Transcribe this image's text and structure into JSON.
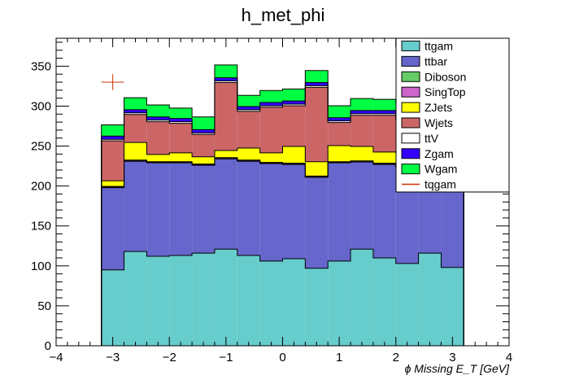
{
  "chart_data": {
    "type": "stacked-histogram",
    "title": "h_met_phi",
    "xlabel": "ϕ Missing E_T [GeV]",
    "ylabel": "",
    "xlim": [
      -4,
      4
    ],
    "ylim": [
      0,
      385
    ],
    "x_ticks": [
      -4,
      -3,
      -2,
      -1,
      0,
      1,
      2,
      3,
      4
    ],
    "x_tick_labels": [
      "−4",
      "−3",
      "−2",
      "−1",
      "0",
      "1",
      "2",
      "3",
      "4"
    ],
    "y_ticks": [
      0,
      50,
      100,
      150,
      200,
      250,
      300,
      350
    ],
    "y_tick_labels": [
      "0",
      "50",
      "100",
      "150",
      "200",
      "250",
      "300",
      "350"
    ],
    "bin_edges": [
      -3.2,
      -2.8,
      -2.4,
      -2.0,
      -1.6,
      -1.2,
      -0.8,
      -0.4,
      0.0,
      0.4,
      0.8,
      1.2,
      1.6,
      2.0,
      2.4,
      2.8,
      3.2
    ],
    "series": [
      {
        "name": "ttgam",
        "color": "#66cccc",
        "values": [
          95,
          118,
          112,
          113,
          116,
          121,
          113,
          106,
          109,
          97,
          106,
          121,
          110,
          103,
          116,
          98
        ]
      },
      {
        "name": "ttbar",
        "color": "#6666cc",
        "values": [
          103,
          113,
          117,
          116,
          110,
          113,
          118,
          122,
          118,
          114,
          123,
          109,
          117,
          121,
          110,
          102
        ]
      },
      {
        "name": "Diboson",
        "color": "#66cc66",
        "values": [
          0.5,
          0.5,
          0.5,
          0.5,
          0.5,
          0.5,
          0.5,
          0.5,
          0.5,
          0.5,
          0.5,
          0.5,
          0.5,
          0.5,
          0.5,
          0.5
        ]
      },
      {
        "name": "SingTop",
        "color": "#cc66cc",
        "values": [
          1,
          1,
          1,
          1,
          1,
          1,
          1,
          1,
          1,
          1,
          1,
          1,
          1,
          1,
          1,
          1
        ]
      },
      {
        "name": "ZJets",
        "color": "#ffff00",
        "values": [
          7,
          22,
          9,
          11,
          9,
          9,
          15,
          12,
          21,
          18,
          20,
          18,
          14,
          16,
          15,
          12
        ]
      },
      {
        "name": "Wjets",
        "color": "#cc6666",
        "values": [
          50,
          35,
          41,
          37,
          28,
          85,
          46,
          57,
          51,
          93,
          29,
          39,
          46,
          42,
          36,
          33
        ]
      },
      {
        "name": "ttV",
        "color": "#ffffff",
        "values": [
          2,
          2,
          2,
          2,
          2,
          2,
          2,
          2,
          2,
          2,
          2,
          2,
          2,
          2,
          2,
          2
        ]
      },
      {
        "name": "Zgam",
        "color": "#3300ff",
        "values": [
          4,
          4,
          4,
          4,
          4,
          4,
          4,
          4,
          4,
          4,
          4,
          4,
          4,
          4,
          4,
          4
        ]
      },
      {
        "name": "Wgam",
        "color": "#00ff44",
        "values": [
          14,
          15,
          15,
          13,
          16,
          16,
          14,
          15,
          15,
          15,
          15,
          15,
          14,
          14,
          13,
          14
        ]
      }
    ],
    "tqgam_marker": {
      "name": "tqgam",
      "color": "#cc3300",
      "x": -3.0,
      "y": 330,
      "xerr": 0.2,
      "yerr": 10
    },
    "legend": {
      "position": "top-right",
      "entries": [
        {
          "name": "ttgam",
          "color": "#66cccc",
          "style": "fill"
        },
        {
          "name": "ttbar",
          "color": "#6666cc",
          "style": "fill"
        },
        {
          "name": "Diboson",
          "color": "#66cc66",
          "style": "fill"
        },
        {
          "name": "SingTop",
          "color": "#cc66cc",
          "style": "fill"
        },
        {
          "name": "ZJets",
          "color": "#ffff00",
          "style": "fill"
        },
        {
          "name": "Wjets",
          "color": "#cc6666",
          "style": "fill"
        },
        {
          "name": "ttV",
          "color": "#ffffff",
          "style": "fill"
        },
        {
          "name": "Zgam",
          "color": "#3300ff",
          "style": "fill"
        },
        {
          "name": "Wgam",
          "color": "#00ff44",
          "style": "fill"
        },
        {
          "name": "tqgam",
          "color": "#cc3300",
          "style": "line"
        }
      ]
    }
  }
}
